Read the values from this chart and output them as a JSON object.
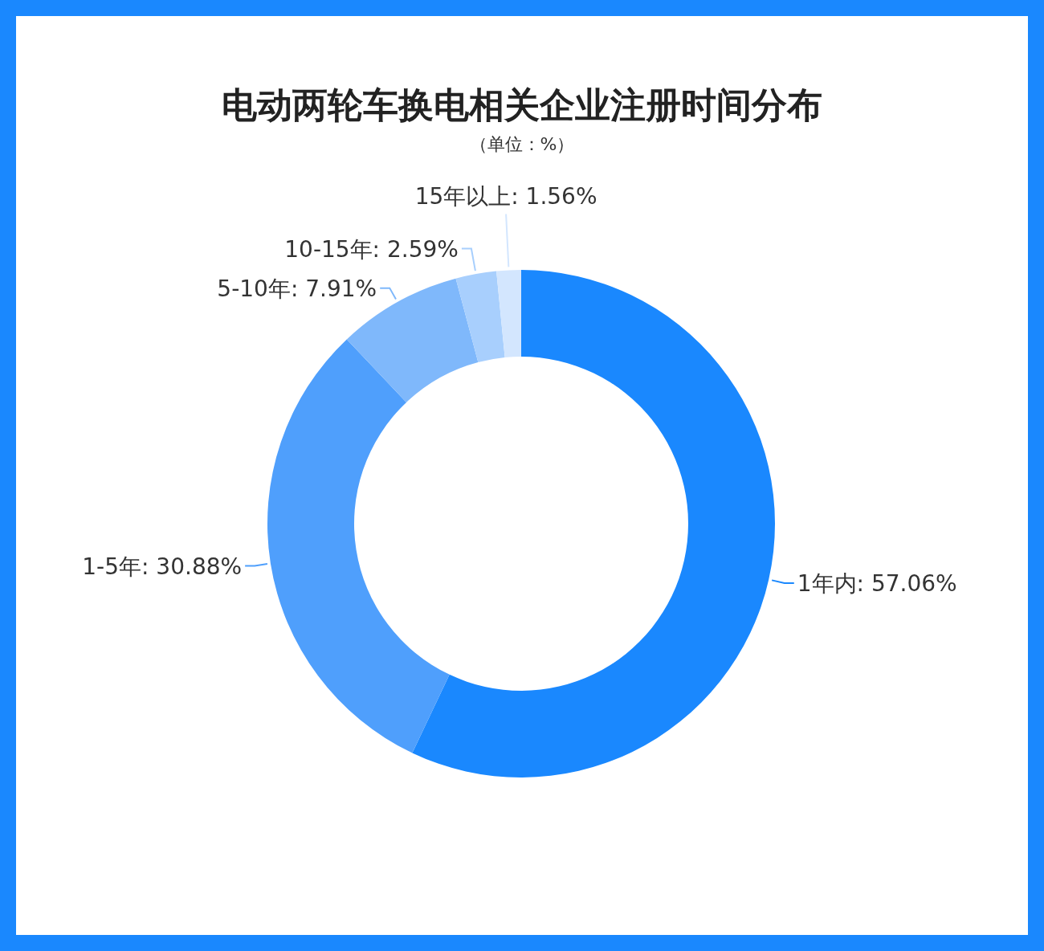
{
  "chart_data": {
    "type": "donut",
    "title": "电动两轮车换电相关企业注册时间分布",
    "subtitle": "（单位：%）",
    "categories": [
      "1年内",
      "1-5年",
      "5-10年",
      "10-15年",
      "15年以上"
    ],
    "values": [
      57.06,
      30.88,
      7.91,
      2.59,
      1.56
    ],
    "value_labels": [
      "57.06%",
      "30.88%",
      "7.91%",
      "2.59%",
      "1.56%"
    ],
    "colors": [
      "#1a88fe",
      "#4f9ffc",
      "#7fb8fb",
      "#a8cffd",
      "#d3e6fe"
    ],
    "legend": false
  }
}
